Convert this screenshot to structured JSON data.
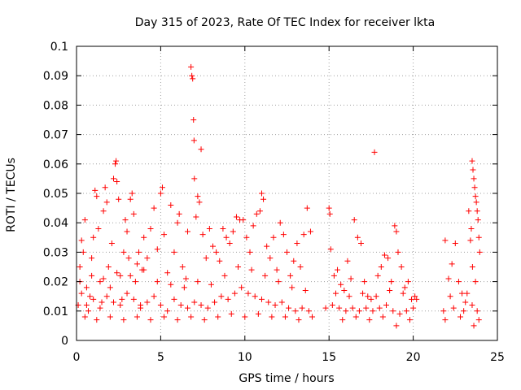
{
  "chart_data": {
    "type": "scatter",
    "title": "Day 315 of 2023, Rate Of TEC Index for receiver lkta",
    "xlabel": "GPS time / hours",
    "ylabel": "ROTI / TECUs",
    "xlim": [
      0,
      25
    ],
    "ylim": [
      0,
      0.1
    ],
    "x_ticks": [
      0,
      5,
      10,
      15,
      20,
      25
    ],
    "x_tick_labels": [
      "0",
      "5",
      "10",
      "15",
      "20",
      "25"
    ],
    "y_ticks": [
      0,
      0.01,
      0.02,
      0.03,
      0.04,
      0.05,
      0.06,
      0.07,
      0.08,
      0.09,
      0.1
    ],
    "y_tick_labels": [
      "0",
      "0.01",
      "0.02",
      "0.03",
      "0.04",
      "0.05",
      "0.06",
      "0.07",
      "0.08",
      "0.09",
      "0.1"
    ],
    "grid": true,
    "marker": "+",
    "color": "#ff0000",
    "points": [
      [
        0.1,
        0.012
      ],
      [
        0.2,
        0.025
      ],
      [
        0.3,
        0.034
      ],
      [
        0.4,
        0.03
      ],
      [
        0.5,
        0.041
      ],
      [
        0.6,
        0.018
      ],
      [
        0.7,
        0.01
      ],
      [
        0.8,
        0.015
      ],
      [
        0.9,
        0.028
      ],
      [
        1.0,
        0.035
      ],
      [
        1.1,
        0.051
      ],
      [
        1.2,
        0.049
      ],
      [
        1.3,
        0.038
      ],
      [
        1.4,
        0.02
      ],
      [
        1.5,
        0.013
      ],
      [
        1.6,
        0.044
      ],
      [
        1.7,
        0.052
      ],
      [
        1.8,
        0.047
      ],
      [
        1.9,
        0.025
      ],
      [
        2.0,
        0.018
      ],
      [
        2.1,
        0.033
      ],
      [
        2.2,
        0.055
      ],
      [
        2.3,
        0.06
      ],
      [
        2.35,
        0.061
      ],
      [
        2.4,
        0.054
      ],
      [
        2.5,
        0.048
      ],
      [
        2.6,
        0.022
      ],
      [
        2.7,
        0.014
      ],
      [
        2.8,
        0.03
      ],
      [
        2.9,
        0.041
      ],
      [
        3.0,
        0.037
      ],
      [
        3.1,
        0.028
      ],
      [
        3.2,
        0.048
      ],
      [
        3.3,
        0.05
      ],
      [
        3.4,
        0.043
      ],
      [
        3.5,
        0.02
      ],
      [
        3.6,
        0.026
      ],
      [
        3.7,
        0.03
      ],
      [
        3.8,
        0.012
      ],
      [
        3.9,
        0.024
      ],
      [
        4.0,
        0.035
      ],
      [
        4.2,
        0.028
      ],
      [
        4.4,
        0.038
      ],
      [
        4.6,
        0.045
      ],
      [
        4.8,
        0.031
      ],
      [
        5.0,
        0.05
      ],
      [
        5.1,
        0.052
      ],
      [
        5.2,
        0.036
      ],
      [
        5.4,
        0.023
      ],
      [
        5.6,
        0.046
      ],
      [
        5.8,
        0.03
      ],
      [
        6.0,
        0.04
      ],
      [
        6.1,
        0.043
      ],
      [
        6.3,
        0.025
      ],
      [
        6.5,
        0.021
      ],
      [
        6.6,
        0.037
      ],
      [
        6.8,
        0.093
      ],
      [
        6.85,
        0.09
      ],
      [
        6.9,
        0.089
      ],
      [
        6.95,
        0.075
      ],
      [
        6.98,
        0.068
      ],
      [
        7.0,
        0.055
      ],
      [
        7.1,
        0.042
      ],
      [
        7.2,
        0.049
      ],
      [
        7.3,
        0.047
      ],
      [
        7.4,
        0.065
      ],
      [
        7.5,
        0.036
      ],
      [
        7.7,
        0.028
      ],
      [
        7.9,
        0.038
      ],
      [
        8.1,
        0.032
      ],
      [
        8.3,
        0.03
      ],
      [
        8.5,
        0.027
      ],
      [
        8.7,
        0.038
      ],
      [
        8.9,
        0.035
      ],
      [
        9.1,
        0.033
      ],
      [
        9.3,
        0.037
      ],
      [
        9.5,
        0.042
      ],
      [
        9.7,
        0.041
      ],
      [
        9.9,
        0.041
      ],
      [
        10.1,
        0.035
      ],
      [
        10.3,
        0.03
      ],
      [
        10.5,
        0.039
      ],
      [
        10.7,
        0.043
      ],
      [
        10.9,
        0.044
      ],
      [
        11.0,
        0.05
      ],
      [
        11.1,
        0.048
      ],
      [
        11.3,
        0.032
      ],
      [
        11.5,
        0.028
      ],
      [
        11.7,
        0.035
      ],
      [
        11.9,
        0.024
      ],
      [
        12.1,
        0.04
      ],
      [
        12.3,
        0.036
      ],
      [
        12.5,
        0.03
      ],
      [
        12.7,
        0.022
      ],
      [
        12.9,
        0.027
      ],
      [
        13.1,
        0.033
      ],
      [
        13.3,
        0.025
      ],
      [
        13.5,
        0.036
      ],
      [
        13.7,
        0.045
      ],
      [
        13.9,
        0.037
      ],
      [
        15.0,
        0.045
      ],
      [
        15.05,
        0.043
      ],
      [
        15.1,
        0.031
      ],
      [
        15.3,
        0.022
      ],
      [
        15.5,
        0.024
      ],
      [
        15.7,
        0.019
      ],
      [
        15.9,
        0.017
      ],
      [
        16.1,
        0.027
      ],
      [
        16.3,
        0.021
      ],
      [
        16.5,
        0.041
      ],
      [
        16.7,
        0.035
      ],
      [
        16.9,
        0.033
      ],
      [
        17.1,
        0.02
      ],
      [
        17.3,
        0.015
      ],
      [
        17.5,
        0.014
      ],
      [
        17.7,
        0.064
      ],
      [
        17.9,
        0.022
      ],
      [
        18.1,
        0.025
      ],
      [
        18.3,
        0.029
      ],
      [
        18.5,
        0.028
      ],
      [
        18.7,
        0.02
      ],
      [
        18.9,
        0.039
      ],
      [
        19.0,
        0.037
      ],
      [
        19.1,
        0.03
      ],
      [
        19.3,
        0.025
      ],
      [
        19.5,
        0.018
      ],
      [
        19.7,
        0.02
      ],
      [
        19.9,
        0.014
      ],
      [
        20.1,
        0.015
      ],
      [
        21.9,
        0.034
      ],
      [
        22.1,
        0.021
      ],
      [
        22.3,
        0.026
      ],
      [
        22.5,
        0.033
      ],
      [
        22.7,
        0.02
      ],
      [
        22.9,
        0.016
      ],
      [
        23.1,
        0.013
      ],
      [
        23.3,
        0.044
      ],
      [
        23.5,
        0.061
      ],
      [
        23.55,
        0.058
      ],
      [
        23.6,
        0.055
      ],
      [
        23.65,
        0.052
      ],
      [
        23.7,
        0.049
      ],
      [
        23.75,
        0.047
      ],
      [
        23.8,
        0.044
      ],
      [
        23.85,
        0.041
      ],
      [
        23.9,
        0.035
      ],
      [
        23.95,
        0.03
      ],
      [
        23.4,
        0.034
      ],
      [
        23.45,
        0.038
      ],
      [
        23.52,
        0.025
      ],
      [
        0.3,
        0.016
      ],
      [
        0.6,
        0.012
      ],
      [
        1.0,
        0.014
      ],
      [
        1.4,
        0.011
      ],
      [
        1.8,
        0.015
      ],
      [
        2.2,
        0.013
      ],
      [
        2.6,
        0.012
      ],
      [
        3.0,
        0.016
      ],
      [
        3.4,
        0.014
      ],
      [
        3.8,
        0.011
      ],
      [
        4.2,
        0.013
      ],
      [
        4.6,
        0.015
      ],
      [
        5.0,
        0.012
      ],
      [
        5.4,
        0.01
      ],
      [
        5.8,
        0.014
      ],
      [
        6.2,
        0.012
      ],
      [
        6.6,
        0.011
      ],
      [
        7.0,
        0.013
      ],
      [
        7.4,
        0.012
      ],
      [
        7.8,
        0.011
      ],
      [
        8.2,
        0.013
      ],
      [
        8.6,
        0.015
      ],
      [
        9.0,
        0.014
      ],
      [
        9.4,
        0.016
      ],
      [
        9.8,
        0.018
      ],
      [
        10.2,
        0.016
      ],
      [
        10.6,
        0.015
      ],
      [
        11.0,
        0.014
      ],
      [
        11.4,
        0.013
      ],
      [
        11.8,
        0.012
      ],
      [
        12.2,
        0.013
      ],
      [
        12.6,
        0.011
      ],
      [
        13.0,
        0.01
      ],
      [
        13.4,
        0.011
      ],
      [
        13.8,
        0.01
      ],
      [
        14.8,
        0.011
      ],
      [
        15.2,
        0.012
      ],
      [
        15.6,
        0.011
      ],
      [
        16.0,
        0.01
      ],
      [
        16.4,
        0.011
      ],
      [
        16.8,
        0.01
      ],
      [
        17.2,
        0.011
      ],
      [
        17.6,
        0.01
      ],
      [
        18.0,
        0.011
      ],
      [
        18.4,
        0.012
      ],
      [
        18.8,
        0.01
      ],
      [
        19.2,
        0.009
      ],
      [
        19.6,
        0.01
      ],
      [
        20.0,
        0.011
      ],
      [
        21.8,
        0.01
      ],
      [
        22.4,
        0.011
      ],
      [
        23.0,
        0.01
      ],
      [
        23.5,
        0.012
      ],
      [
        23.8,
        0.01
      ],
      [
        0.2,
        0.02
      ],
      [
        0.9,
        0.022
      ],
      [
        1.6,
        0.021
      ],
      [
        2.4,
        0.023
      ],
      [
        3.2,
        0.022
      ],
      [
        4.0,
        0.024
      ],
      [
        4.8,
        0.02
      ],
      [
        5.6,
        0.019
      ],
      [
        6.4,
        0.018
      ],
      [
        7.2,
        0.02
      ],
      [
        8.0,
        0.019
      ],
      [
        8.8,
        0.022
      ],
      [
        9.6,
        0.025
      ],
      [
        10.4,
        0.024
      ],
      [
        11.2,
        0.022
      ],
      [
        12.0,
        0.02
      ],
      [
        12.8,
        0.018
      ],
      [
        13.6,
        0.017
      ],
      [
        15.4,
        0.016
      ],
      [
        16.2,
        0.015
      ],
      [
        17.0,
        0.016
      ],
      [
        17.8,
        0.015
      ],
      [
        18.6,
        0.017
      ],
      [
        19.4,
        0.016
      ],
      [
        20.2,
        0.014
      ],
      [
        22.2,
        0.015
      ],
      [
        23.2,
        0.016
      ],
      [
        23.7,
        0.02
      ],
      [
        0.5,
        0.008
      ],
      [
        1.2,
        0.007
      ],
      [
        2.0,
        0.008
      ],
      [
        2.8,
        0.007
      ],
      [
        3.6,
        0.008
      ],
      [
        4.4,
        0.007
      ],
      [
        5.2,
        0.008
      ],
      [
        6.0,
        0.007
      ],
      [
        6.8,
        0.008
      ],
      [
        7.6,
        0.007
      ],
      [
        8.4,
        0.008
      ],
      [
        9.2,
        0.009
      ],
      [
        10.0,
        0.008
      ],
      [
        10.8,
        0.009
      ],
      [
        11.6,
        0.008
      ],
      [
        12.4,
        0.008
      ],
      [
        13.2,
        0.007
      ],
      [
        14.0,
        0.008
      ],
      [
        15.8,
        0.007
      ],
      [
        16.6,
        0.008
      ],
      [
        17.4,
        0.007
      ],
      [
        18.2,
        0.008
      ],
      [
        19.0,
        0.005
      ],
      [
        19.8,
        0.007
      ],
      [
        21.9,
        0.007
      ],
      [
        22.8,
        0.008
      ],
      [
        23.6,
        0.005
      ],
      [
        23.9,
        0.007
      ]
    ]
  }
}
